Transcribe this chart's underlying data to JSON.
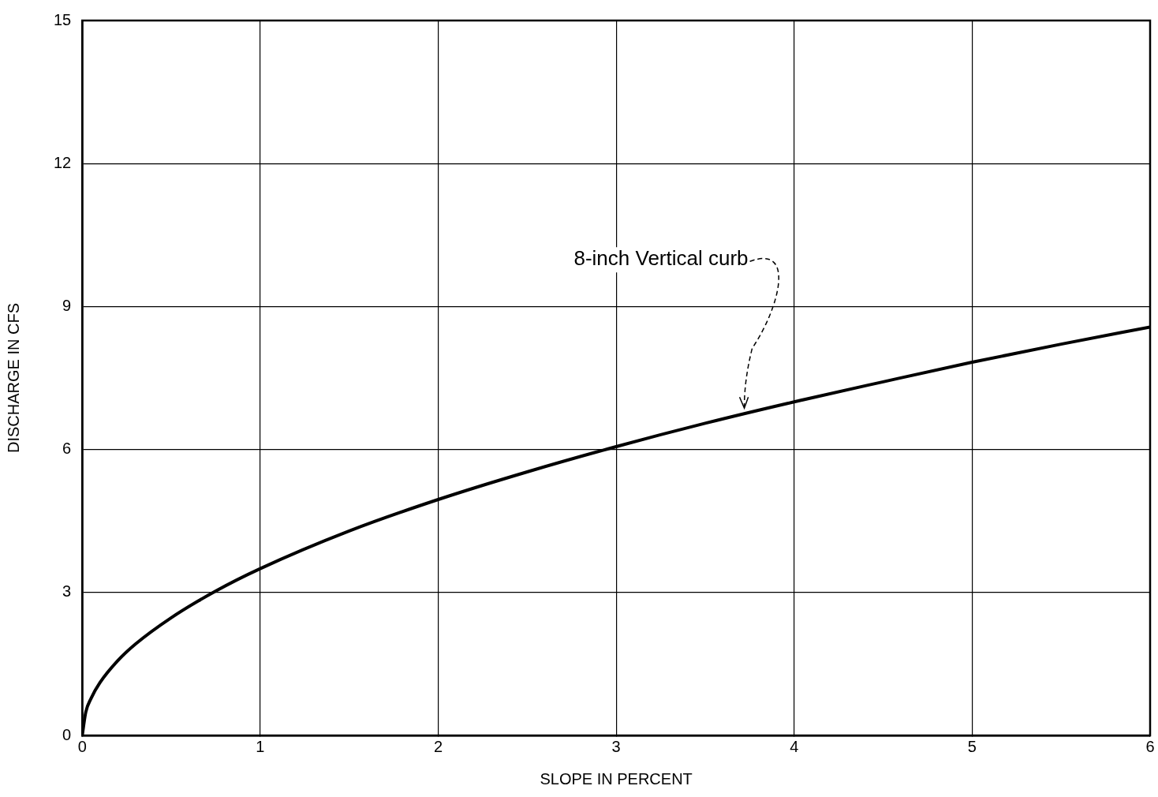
{
  "chart_data": {
    "type": "line",
    "xlabel": "SLOPE IN PERCENT",
    "ylabel": "DISCHARGE IN CFS",
    "x": [
      0,
      0.02,
      0.05,
      0.1,
      0.2,
      0.3,
      0.5,
      0.75,
      1,
      1.5,
      2,
      2.5,
      3,
      3.5,
      4,
      4.5,
      5,
      5.5,
      6
    ],
    "series": [
      {
        "color": "#000000",
        "values": [
          0,
          0.49,
          0.78,
          1.11,
          1.57,
          1.92,
          2.47,
          3.03,
          3.5,
          4.29,
          4.95,
          5.53,
          6.06,
          6.55,
          7.0,
          7.42,
          7.83,
          8.21,
          8.57
        ]
      }
    ],
    "xlim": [
      0,
      6
    ],
    "xticks": [
      0,
      1,
      2,
      3,
      4,
      5,
      6
    ],
    "ylim": [
      0,
      15
    ],
    "yticks": [
      0,
      3,
      6,
      9,
      12,
      15
    ],
    "grid": true,
    "legend": false,
    "marker": "none",
    "line_style": "solid",
    "annotations": [
      {
        "text": "8-inch Vertical curb",
        "x": 3.72,
        "y": 6.8
      }
    ]
  }
}
